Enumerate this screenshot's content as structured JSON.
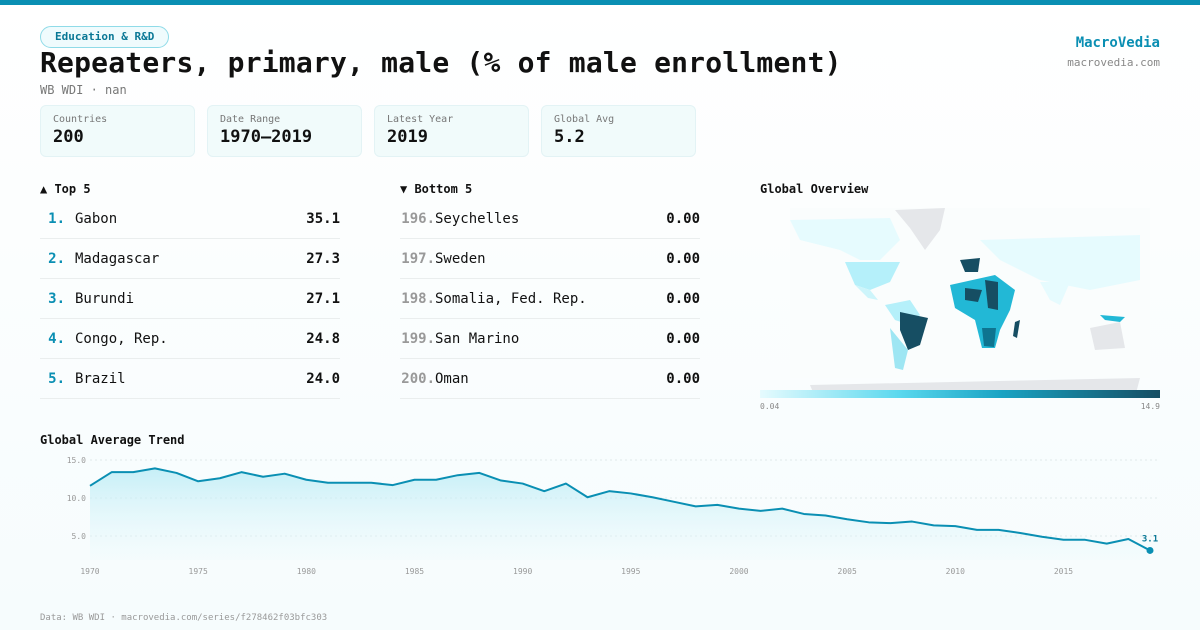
{
  "header": {
    "category": "Education & R&D",
    "title": "Repeaters, primary, male (% of male enrollment)",
    "subtitle": "WB WDI · nan",
    "brand": "MacroVedia",
    "brand_url": "macrovedia.com"
  },
  "stats": [
    {
      "label": "Countries",
      "value": "200"
    },
    {
      "label": "Date Range",
      "value": "1970–2019"
    },
    {
      "label": "Latest Year",
      "value": "2019"
    },
    {
      "label": "Global Avg",
      "value": "5.2"
    }
  ],
  "top": {
    "title": "▲ Top 5",
    "items": [
      {
        "rank": "1.",
        "name": "Gabon",
        "value": "35.1"
      },
      {
        "rank": "2.",
        "name": "Madagascar",
        "value": "27.3"
      },
      {
        "rank": "3.",
        "name": "Burundi",
        "value": "27.1"
      },
      {
        "rank": "4.",
        "name": "Congo, Rep.",
        "value": "24.8"
      },
      {
        "rank": "5.",
        "name": "Brazil",
        "value": "24.0"
      }
    ]
  },
  "bottom": {
    "title": "▼ Bottom 5",
    "items": [
      {
        "rank": "196.",
        "name": "Seychelles",
        "value": "0.00"
      },
      {
        "rank": "197.",
        "name": "Sweden",
        "value": "0.00"
      },
      {
        "rank": "198.",
        "name": "Somalia, Fed. Rep.",
        "value": "0.00"
      },
      {
        "rank": "199.",
        "name": "San Marino",
        "value": "0.00"
      },
      {
        "rank": "200.",
        "name": "Oman",
        "value": "0.00"
      }
    ]
  },
  "map": {
    "title": "Global Overview",
    "legend_min": "0.04",
    "legend_max": "14.9",
    "colors": {
      "low": "#e6fbfe",
      "mid": "#22b8d6",
      "high": "#164e63",
      "nodata": "#e5e7ea"
    }
  },
  "chart_data": {
    "type": "area",
    "title": "Global Average Trend",
    "x": [
      1970,
      1971,
      1972,
      1973,
      1974,
      1975,
      1976,
      1977,
      1978,
      1979,
      1980,
      1981,
      1982,
      1983,
      1984,
      1985,
      1986,
      1987,
      1988,
      1989,
      1990,
      1991,
      1992,
      1993,
      1994,
      1995,
      1996,
      1997,
      1998,
      1999,
      2000,
      2001,
      2002,
      2003,
      2004,
      2005,
      2006,
      2007,
      2008,
      2009,
      2010,
      2011,
      2012,
      2013,
      2014,
      2015,
      2016,
      2017,
      2018,
      2019
    ],
    "y": [
      11.6,
      13.4,
      13.4,
      13.9,
      13.3,
      12.2,
      12.6,
      13.4,
      12.8,
      13.2,
      12.4,
      12.0,
      12.0,
      12.0,
      11.7,
      12.4,
      12.4,
      13.0,
      13.3,
      12.3,
      11.9,
      10.9,
      11.9,
      10.1,
      10.9,
      10.6,
      10.1,
      9.5,
      8.9,
      9.1,
      8.6,
      8.3,
      8.6,
      7.9,
      7.7,
      7.2,
      6.8,
      6.7,
      6.9,
      6.4,
      6.3,
      5.8,
      5.8,
      5.4,
      4.9,
      4.5,
      4.5,
      4.0,
      4.6,
      3.1
    ],
    "xticks": [
      "1970",
      "1975",
      "1980",
      "1985",
      "1990",
      "1995",
      "2000",
      "2005",
      "2010",
      "2015"
    ],
    "yticks": [
      "5.0",
      "10.0",
      "15.0"
    ],
    "last_label": "3.1",
    "xlim": [
      1970,
      2019
    ],
    "ylim": [
      2.5,
      15
    ],
    "grid": true,
    "color": "#0a8fb3"
  },
  "footer": "Data: WB WDI · macrovedia.com/series/f278462f03bfc303"
}
